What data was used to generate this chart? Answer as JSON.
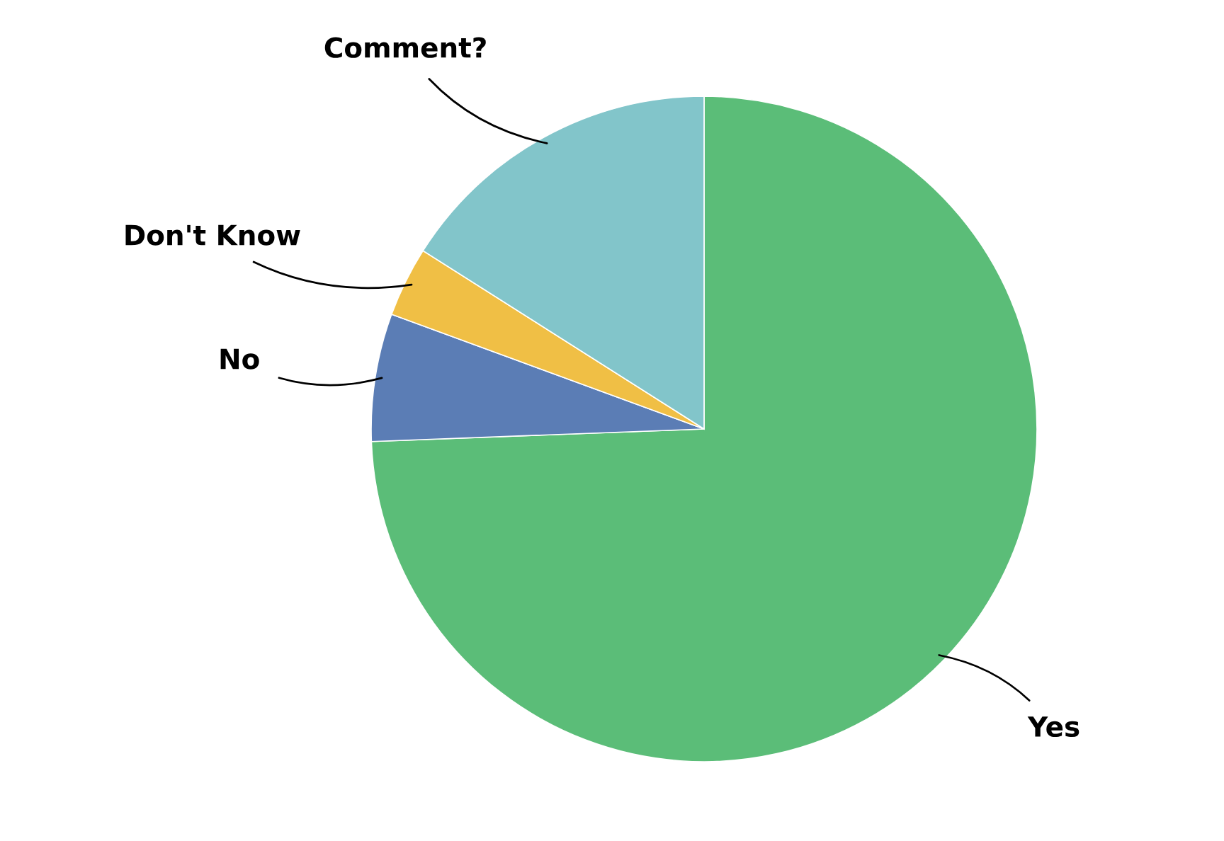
{
  "chart_data": {
    "type": "pie",
    "categories": [
      "Yes",
      "No",
      "Don't Know",
      "Comment?"
    ],
    "values": [
      74.4,
      6.2,
      3.4,
      16.0
    ],
    "colors": [
      "#5bbd78",
      "#5b7db5",
      "#f0bf45",
      "#82c5ca"
    ],
    "legend": false
  }
}
